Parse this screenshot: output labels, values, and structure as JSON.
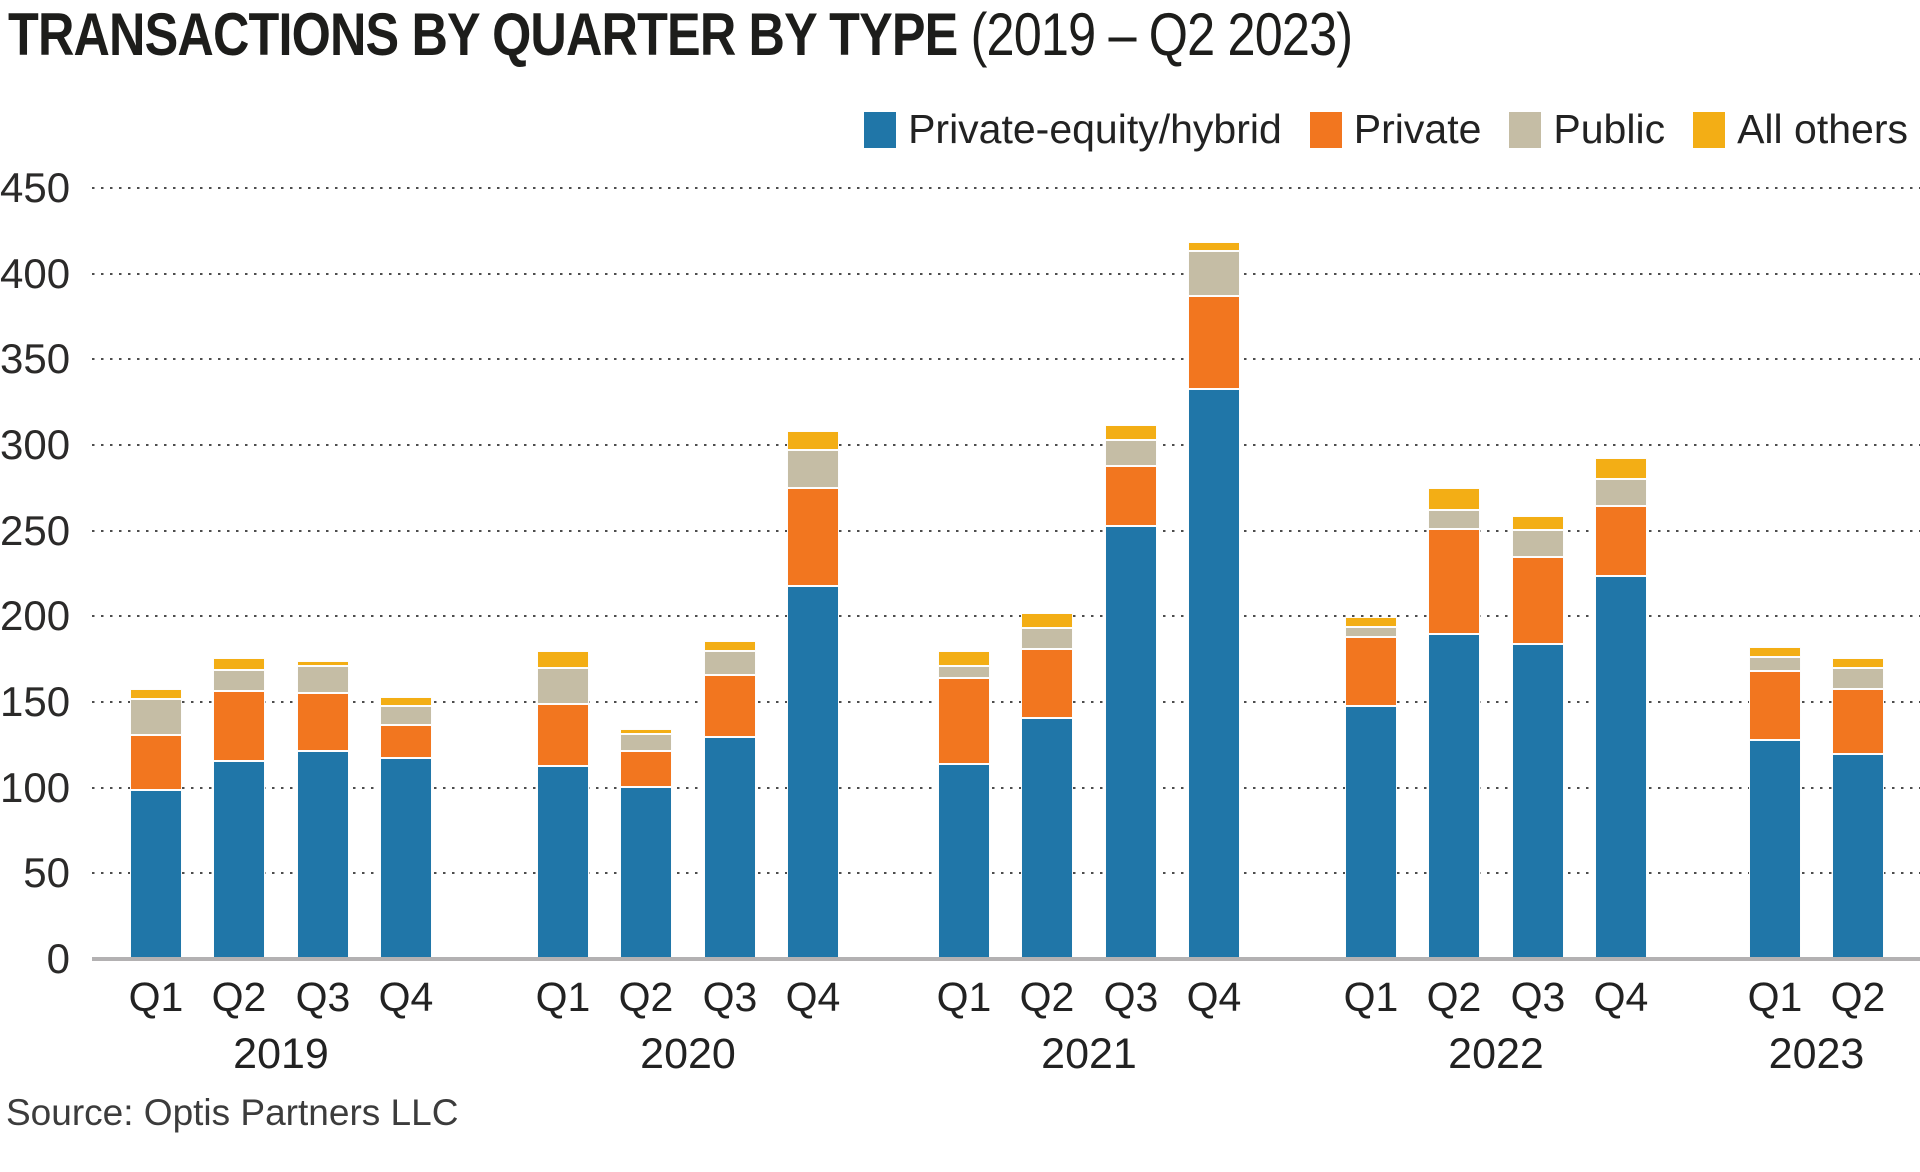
{
  "title": {
    "main": "TRANSACTIONS BY QUARTER BY TYPE ",
    "suffix": "(2019 – Q2 2023)"
  },
  "source": "Source: Optis Partners LLC",
  "legend": {
    "position": "top-right",
    "items": [
      {
        "label": "Private-equity/hybrid",
        "color": "#2076A8"
      },
      {
        "label": "Private",
        "color": "#F2761F"
      },
      {
        "label": "Public",
        "color": "#C5BDA5"
      },
      {
        "label": "All others",
        "color": "#F3AE15"
      }
    ]
  },
  "y_axis": {
    "ticks": [
      450,
      400,
      350,
      300,
      250,
      200,
      150,
      100,
      50,
      0
    ]
  },
  "chart_data": {
    "type": "bar",
    "stacked": true,
    "title": "TRANSACTIONS BY QUARTER BY TYPE (2019 – Q2 2023)",
    "xlabel": "",
    "ylabel": "",
    "ylim": [
      0,
      450
    ],
    "grid": "horizontal-dotted",
    "legend_position": "top-right",
    "groups": [
      {
        "year": "2019",
        "quarters": [
          "Q1",
          "Q2",
          "Q3",
          "Q4"
        ]
      },
      {
        "year": "2020",
        "quarters": [
          "Q1",
          "Q2",
          "Q3",
          "Q4"
        ]
      },
      {
        "year": "2021",
        "quarters": [
          "Q1",
          "Q2",
          "Q3",
          "Q4"
        ]
      },
      {
        "year": "2022",
        "quarters": [
          "Q1",
          "Q2",
          "Q3",
          "Q4"
        ]
      },
      {
        "year": "2023",
        "quarters": [
          "Q1",
          "Q2"
        ]
      }
    ],
    "categories": [
      "2019 Q1",
      "2019 Q2",
      "2019 Q3",
      "2019 Q4",
      "2020 Q1",
      "2020 Q2",
      "2020 Q3",
      "2020 Q4",
      "2021 Q1",
      "2021 Q2",
      "2021 Q3",
      "2021 Q4",
      "2022 Q1",
      "2022 Q2",
      "2022 Q3",
      "2022 Q4",
      "2023 Q1",
      "2023 Q2"
    ],
    "series": [
      {
        "name": "Private-equity/hybrid",
        "color": "#2076A8",
        "values": [
          98,
          115,
          121,
          117,
          112,
          100,
          129,
          217,
          113,
          140,
          252,
          332,
          147,
          189,
          183,
          223,
          127,
          119
        ]
      },
      {
        "name": "Private",
        "color": "#F2761F",
        "values": [
          32,
          41,
          34,
          19,
          36,
          21,
          36,
          57,
          50,
          40,
          35,
          54,
          40,
          61,
          51,
          41,
          40,
          38
        ]
      },
      {
        "name": "Public",
        "color": "#C5BDA5",
        "values": [
          21,
          12,
          16,
          11,
          21,
          10,
          14,
          22,
          7,
          12,
          15,
          26,
          6,
          11,
          16,
          16,
          8,
          12
        ]
      },
      {
        "name": "All others",
        "color": "#F3AE15",
        "values": [
          6,
          7,
          3,
          5,
          10,
          3,
          6,
          11,
          9,
          9,
          9,
          5,
          6,
          13,
          8,
          12,
          6,
          6
        ]
      }
    ],
    "totals": [
      157,
      175,
      174,
      152,
      179,
      134,
      185,
      307,
      179,
      201,
      311,
      417,
      199,
      274,
      258,
      292,
      181,
      175
    ]
  }
}
